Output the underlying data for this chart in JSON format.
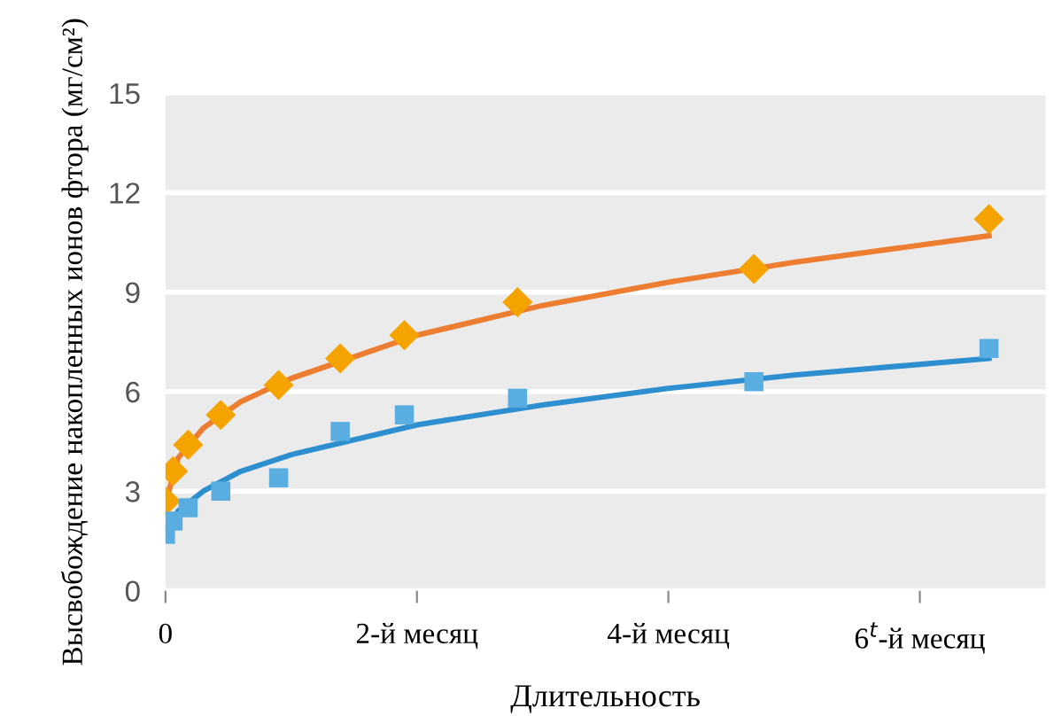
{
  "chart_data": {
    "type": "scatter",
    "xlabel": "Длительность",
    "ylabel": "Высвобождение накопленных ионов фтора (мг/см²)",
    "xlim": [
      0,
      7
    ],
    "xticks": [
      0,
      {
        "value": 2,
        "label": "2-й месяц"
      },
      {
        "value": 4,
        "label": "4-й месяц"
      },
      {
        "value": 6,
        "label": "6$^{t}$-й месяц"
      }
    ],
    "ylim": [
      0,
      15
    ],
    "yticks": [
      0,
      3,
      6,
      9,
      12,
      15
    ],
    "grid": "y",
    "legend": false,
    "series": [
      {
        "type": "line",
        "color": "#ed7d31",
        "marker": "none",
        "line_style": "solid",
        "x": [
          0.02,
          0.1,
          0.3,
          0.6,
          1,
          2,
          3,
          4,
          5,
          6.55
        ],
        "values": [
          2.9,
          4.0,
          4.9,
          5.7,
          6.4,
          7.7,
          8.6,
          9.3,
          9.9,
          10.7
        ]
      },
      {
        "type": "line",
        "color": "#2e8fd0",
        "marker": "none",
        "line_style": "solid",
        "x": [
          0.02,
          0.1,
          0.3,
          0.6,
          1,
          2,
          3,
          4,
          5,
          6.55
        ],
        "values": [
          1.6,
          2.4,
          3.0,
          3.6,
          4.1,
          5.0,
          5.6,
          6.1,
          6.5,
          7.0
        ]
      },
      {
        "color": "#f5a300",
        "marker": "diamond",
        "x": [
          0,
          0.06,
          0.18,
          0.44,
          0.9,
          1.39,
          1.9,
          2.8,
          4.68,
          6.55
        ],
        "values": [
          2.7,
          3.6,
          4.4,
          5.3,
          6.2,
          7.0,
          7.7,
          8.7,
          9.7,
          11.2
        ]
      },
      {
        "color": "#5aade0",
        "marker": "square",
        "x": [
          0,
          0.06,
          0.18,
          0.44,
          0.9,
          1.39,
          1.9,
          2.8,
          4.68,
          6.55
        ],
        "values": [
          1.7,
          2.1,
          2.5,
          3.0,
          3.4,
          4.8,
          5.3,
          5.8,
          6.3,
          7.3
        ]
      }
    ]
  }
}
